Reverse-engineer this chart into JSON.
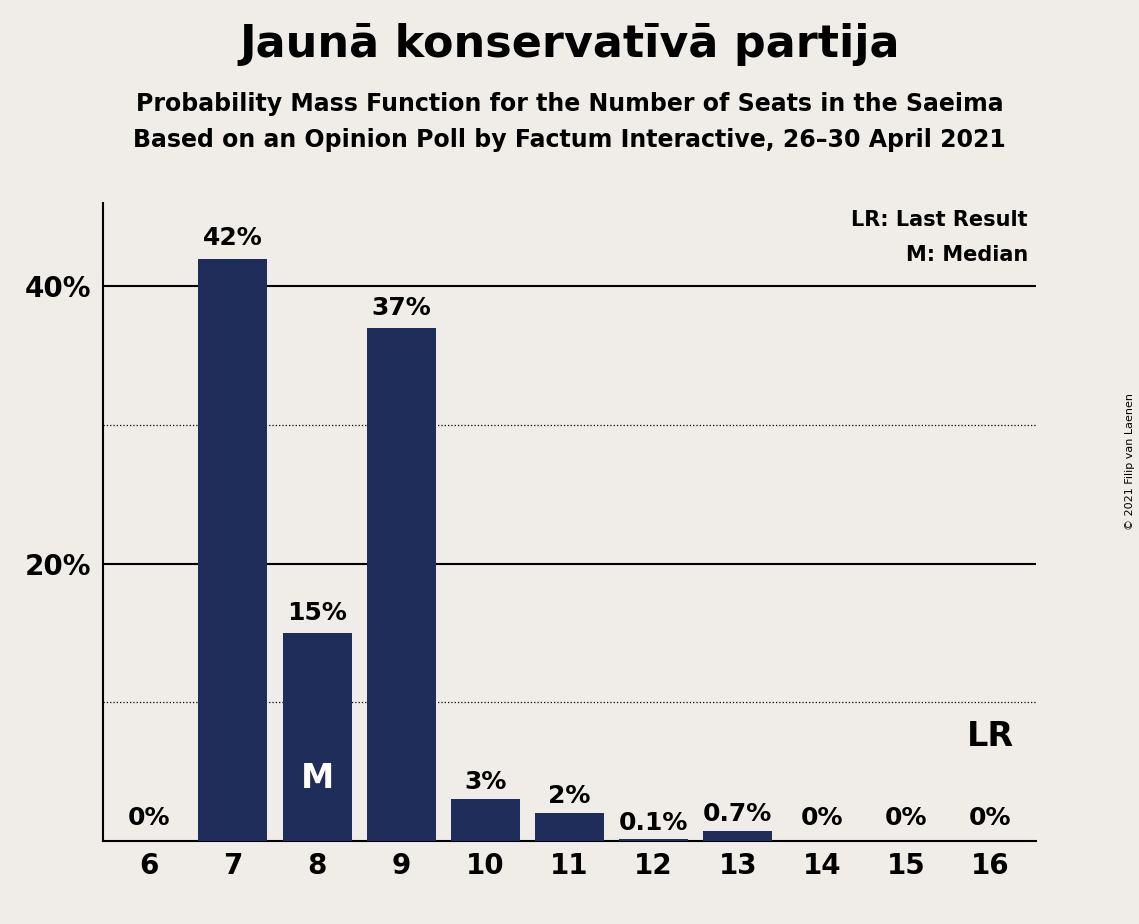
{
  "title": "Jaunā konservatīvā partija",
  "subtitle1": "Probability Mass Function for the Number of Seats in the Saeima",
  "subtitle2": "Based on an Opinion Poll by Factum Interactive, 26–30 April 2021",
  "copyright": "© 2021 Filip van Laenen",
  "categories": [
    6,
    7,
    8,
    9,
    10,
    11,
    12,
    13,
    14,
    15,
    16
  ],
  "values": [
    0.0,
    42.0,
    15.0,
    37.0,
    3.0,
    2.0,
    0.1,
    0.7,
    0.0,
    0.0,
    0.0
  ],
  "labels": [
    "0%",
    "42%",
    "15%",
    "37%",
    "3%",
    "2%",
    "0.1%",
    "0.7%",
    "0%",
    "0%",
    "0%"
  ],
  "bar_color": "#1e2d5a",
  "background_color": "#f0ede8",
  "median_bar": 8,
  "lr_bar": 16,
  "median_label": "M",
  "lr_label": "LR",
  "legend_lr": "LR: Last Result",
  "legend_m": "M: Median",
  "ylim": [
    0,
    46
  ],
  "solid_gridlines": [
    20,
    40
  ],
  "dotted_gridlines": [
    10,
    30
  ],
  "title_fontsize": 32,
  "subtitle_fontsize": 17,
  "bar_label_fontsize": 18,
  "axis_tick_fontsize": 20,
  "legend_fontsize": 15,
  "median_label_fontsize": 24,
  "lr_label_fontsize": 24
}
